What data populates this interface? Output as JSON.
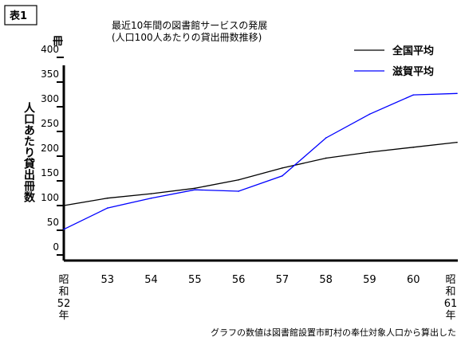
{
  "chart_data": {
    "type": "line",
    "table_label": "表1",
    "title_lines": [
      "最近10年間の図書館サービスの発展",
      "(人口100人あたりの貸出冊数推移)"
    ],
    "ylabel": "人口あたり貸出冊数",
    "yunit": "冊",
    "ylim": [
      0,
      400
    ],
    "yticks": [
      0,
      50,
      100,
      150,
      200,
      250,
      300,
      350,
      400
    ],
    "categories": [
      {
        "key": "52",
        "lines": [
          "昭",
          "和",
          "52",
          "年"
        ]
      },
      {
        "key": "53",
        "lines": [
          "53"
        ]
      },
      {
        "key": "54",
        "lines": [
          "54"
        ]
      },
      {
        "key": "55",
        "lines": [
          "55"
        ]
      },
      {
        "key": "56",
        "lines": [
          "56"
        ]
      },
      {
        "key": "57",
        "lines": [
          "57"
        ]
      },
      {
        "key": "58",
        "lines": [
          "58"
        ]
      },
      {
        "key": "59",
        "lines": [
          "59"
        ]
      },
      {
        "key": "60",
        "lines": [
          "60"
        ]
      },
      {
        "key": "61",
        "lines": [
          "昭",
          "和",
          "61",
          "年"
        ]
      }
    ],
    "series": [
      {
        "name": "全国平均",
        "color": "#000000",
        "values": [
          100,
          115,
          124,
          135,
          152,
          176,
          196,
          208,
          218,
          228
        ]
      },
      {
        "name": "滋賀平均",
        "color": "#0000ff",
        "values": [
          52,
          95,
          115,
          132,
          129,
          160,
          237,
          285,
          324,
          327
        ]
      }
    ],
    "legend_position": "top-right",
    "grid": false,
    "footnote": "グラフの数値は図書館設置市町村の奉仕対象人口から算出した"
  }
}
